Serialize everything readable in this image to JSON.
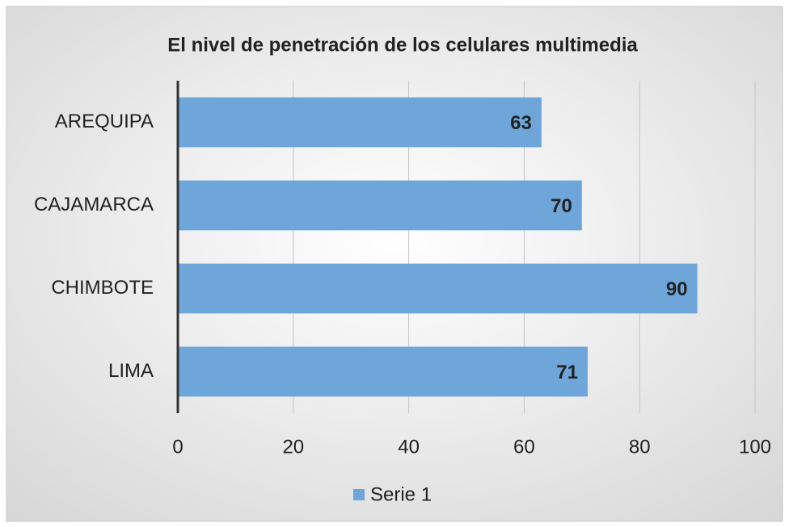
{
  "chart_data": {
    "type": "bar",
    "orientation": "horizontal",
    "title": "El nivel de penetración de los celulares multimedia",
    "categories": [
      "AREQUIPA",
      "CAJAMARCA",
      "CHIMBOTE",
      "LIMA"
    ],
    "series": [
      {
        "name": "Serie 1",
        "color": "#6fa6da",
        "values": [
          63,
          70,
          90,
          71
        ]
      }
    ],
    "xlim": [
      0,
      100
    ],
    "xticks": [
      0,
      20,
      40,
      60,
      80,
      100
    ],
    "grid": true,
    "legend": "bottom"
  }
}
